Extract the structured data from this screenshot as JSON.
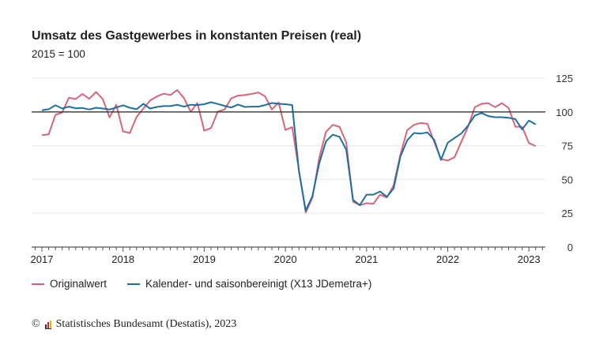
{
  "chart_data": {
    "type": "line",
    "title": "Umsatz des Gastgewerbes in konstanten Preisen (real)",
    "subtitle": "2015 = 100",
    "xlabel": "",
    "ylabel": "",
    "ylim": [
      0,
      125
    ],
    "yticks": [
      "0",
      "25",
      "50",
      "75",
      "100",
      "125"
    ],
    "xtick_labels": [
      "2017",
      "2018",
      "2019",
      "2020",
      "2021",
      "2022",
      "2023"
    ],
    "reference_line": 100,
    "grid": true,
    "legend_placement": "bottom-left",
    "x": [
      "2017-01",
      "2017-02",
      "2017-03",
      "2017-04",
      "2017-05",
      "2017-06",
      "2017-07",
      "2017-08",
      "2017-09",
      "2017-10",
      "2017-11",
      "2017-12",
      "2018-01",
      "2018-02",
      "2018-03",
      "2018-04",
      "2018-05",
      "2018-06",
      "2018-07",
      "2018-08",
      "2018-09",
      "2018-10",
      "2018-11",
      "2018-12",
      "2019-01",
      "2019-02",
      "2019-03",
      "2019-04",
      "2019-05",
      "2019-06",
      "2019-07",
      "2019-08",
      "2019-09",
      "2019-10",
      "2019-11",
      "2019-12",
      "2020-01",
      "2020-02",
      "2020-03",
      "2020-04",
      "2020-05",
      "2020-06",
      "2020-07",
      "2020-08",
      "2020-09",
      "2020-10",
      "2020-11",
      "2020-12",
      "2021-01",
      "2021-02",
      "2021-03",
      "2021-04",
      "2021-05",
      "2021-06",
      "2021-07",
      "2021-08",
      "2021-09",
      "2021-10",
      "2021-11",
      "2021-12",
      "2022-01",
      "2022-02",
      "2022-03",
      "2022-04",
      "2022-05",
      "2022-06",
      "2022-07",
      "2022-08",
      "2022-09",
      "2022-10",
      "2022-11",
      "2022-12",
      "2023-01",
      "2023-02"
    ],
    "series": [
      {
        "name": "Originalwert",
        "color": "#d6657a",
        "values": [
          82.8,
          83.4,
          97.8,
          99.6,
          110.5,
          109.5,
          113.3,
          109.7,
          114.8,
          109.5,
          95.9,
          105.3,
          85.6,
          84.4,
          96.3,
          102.5,
          108.4,
          111.5,
          113.5,
          112.5,
          116.2,
          110.3,
          100.2,
          106.6,
          86.1,
          88.1,
          100.2,
          101.8,
          110.1,
          112.1,
          112.5,
          113.3,
          114.4,
          111.5,
          101.8,
          107.0,
          86.7,
          88.7,
          57.0,
          25.5,
          36.5,
          66.0,
          85.2,
          90.4,
          89.0,
          77.4,
          33.5,
          31.0,
          32.5,
          32.0,
          38.8,
          36.6,
          45.6,
          68.4,
          86.5,
          90.4,
          91.8,
          91.2,
          77.8,
          65.1,
          64.0,
          66.5,
          77.8,
          89.0,
          103.5,
          106.0,
          106.4,
          103.5,
          106.4,
          103.0,
          89.0,
          89.0,
          77.0,
          74.7
        ]
      },
      {
        "name": "Kalender- und saisonbereinigt (X13 JDemetra+)",
        "color": "#1f6f9e",
        "values": [
          101.2,
          102.0,
          104.9,
          102.5,
          103.9,
          102.7,
          102.9,
          101.8,
          103.1,
          102.5,
          101.8,
          103.3,
          104.9,
          103.1,
          102.0,
          106.0,
          102.5,
          103.7,
          104.3,
          104.3,
          105.3,
          103.9,
          105.3,
          105.1,
          105.7,
          107.2,
          105.9,
          104.5,
          103.3,
          105.5,
          103.7,
          103.9,
          103.9,
          105.1,
          106.6,
          106.0,
          105.7,
          105.1,
          56.3,
          27.0,
          37.8,
          62.0,
          78.2,
          83.2,
          81.6,
          72.0,
          34.9,
          31.0,
          38.8,
          38.8,
          41.1,
          37.2,
          43.3,
          67.0,
          79.0,
          84.4,
          84.0,
          84.8,
          79.4,
          64.5,
          77.2,
          80.7,
          84.0,
          89.9,
          97.3,
          99.2,
          96.9,
          96.1,
          96.1,
          95.7,
          94.7,
          87.1,
          93.6,
          90.8
        ]
      }
    ]
  },
  "footer": {
    "copyright_symbol": "©",
    "source": "Statistisches Bundesamt (Destatis), 2023"
  }
}
